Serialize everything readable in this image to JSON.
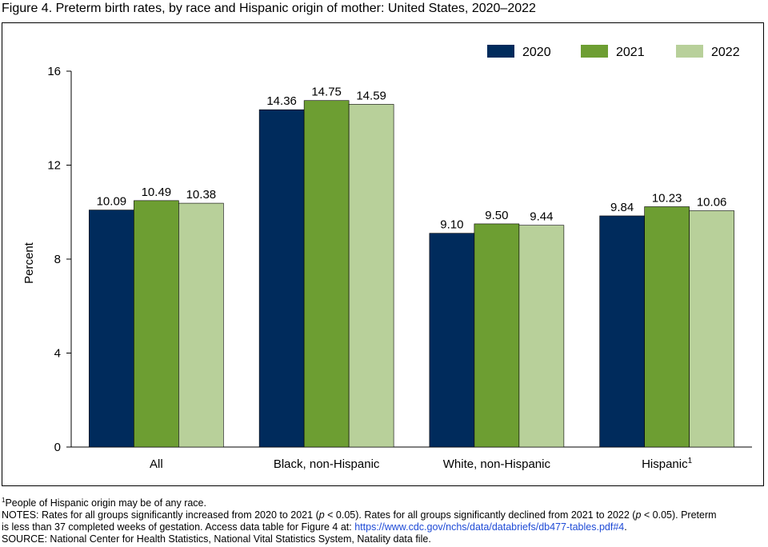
{
  "title": "Figure 4. Preterm birth rates, by race and Hispanic origin of mother: United States, 2020–2022",
  "colors": {
    "2020": "#002b5c",
    "2021": "#6d9e32",
    "2022": "#b8d09a"
  },
  "chart_data": {
    "type": "bar",
    "categories": [
      "All",
      "Black, non-Hispanic",
      "White, non-Hispanic",
      "Hispanic"
    ],
    "category_superscripts": [
      "",
      "",
      "",
      "1"
    ],
    "series": [
      {
        "name": "2020",
        "values": [
          10.09,
          14.36,
          9.1,
          9.84
        ],
        "labels": [
          "10.09",
          "14.36",
          "9.10",
          "9.84"
        ]
      },
      {
        "name": "2021",
        "values": [
          10.49,
          14.75,
          9.5,
          10.23
        ],
        "labels": [
          "10.49",
          "14.75",
          "9.50",
          "10.23"
        ]
      },
      {
        "name": "2022",
        "values": [
          10.38,
          14.59,
          9.44,
          10.06
        ],
        "labels": [
          "10.38",
          "14.59",
          "9.44",
          "10.06"
        ]
      }
    ],
    "ylabel": "Percent",
    "ylim": [
      0,
      16
    ],
    "yticks": [
      0,
      4,
      8,
      12,
      16
    ],
    "grid": false,
    "legend_position": "top-right"
  },
  "notes": {
    "footnote_marker": "1",
    "footnote": "People of Hispanic origin may be of any race.",
    "notes_label": "NOTES: ",
    "notes_line1_a": "Rates for all groups significantly increased from 2020 to 2021 (",
    "p_symbol": "p",
    "notes_line1_b": " < 0.05). Rates for all groups significantly declined from 2021 to 2022 (",
    "notes_line1_c": " < 0.05). Preterm",
    "notes_line2_a": "is less than 37 completed weeks of gestation. Access data table for Figure 4 at: ",
    "link": "https://www.cdc.gov/nchs/data/databriefs/db477-tables.pdf#4",
    "notes_line2_b": ".",
    "source": "SOURCE: National Center for Health Statistics, National Vital Statistics System, Natality data file."
  }
}
